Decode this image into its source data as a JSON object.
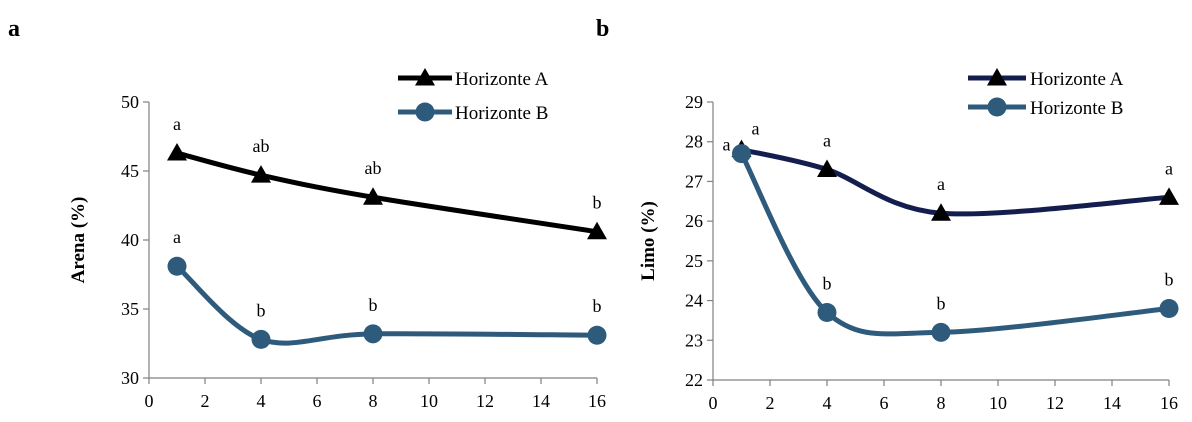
{
  "chart_data": [
    {
      "type": "line",
      "panel_label": "a",
      "title": "",
      "xlabel": "",
      "ylabel": "Arena (%)",
      "xlim": [
        0,
        16
      ],
      "ylim": [
        30,
        50
      ],
      "xticks": [
        0,
        2,
        4,
        6,
        8,
        10,
        12,
        14,
        16
      ],
      "yticks": [
        30,
        35,
        40,
        45,
        50
      ],
      "grid": false,
      "legend_position": "top-right",
      "x": [
        1,
        4,
        8,
        16
      ],
      "series": [
        {
          "name": "Horizonte A",
          "values": [
            46.3,
            44.7,
            43.1,
            40.6
          ],
          "color": "#000000",
          "marker": "triangle",
          "letters": [
            "a",
            "ab",
            "ab",
            "b"
          ]
        },
        {
          "name": "Horizonte B",
          "values": [
            38.1,
            32.8,
            33.2,
            33.1
          ],
          "color": "#2E5A7C",
          "marker": "circle",
          "letters": [
            "a",
            "b",
            "b",
            "b"
          ]
        }
      ]
    },
    {
      "type": "line",
      "panel_label": "b",
      "title": "",
      "xlabel": "",
      "ylabel": "Limo (%)",
      "xlim": [
        0,
        16
      ],
      "ylim": [
        22,
        29
      ],
      "xticks": [
        0,
        2,
        4,
        6,
        8,
        10,
        12,
        14,
        16
      ],
      "yticks": [
        22,
        23,
        24,
        25,
        26,
        27,
        28,
        29
      ],
      "grid": false,
      "legend_position": "top-right",
      "x": [
        1,
        4,
        8,
        16
      ],
      "series": [
        {
          "name": "Horizonte A",
          "values": [
            27.8,
            27.3,
            26.2,
            26.6
          ],
          "color": "#141E4E",
          "marker": "triangle",
          "letters": [
            "a",
            "a",
            "a",
            "a"
          ]
        },
        {
          "name": "Horizonte B",
          "values": [
            27.7,
            23.7,
            23.2,
            23.8
          ],
          "color": "#2E5A7C",
          "marker": "circle",
          "letters": [
            "a",
            "b",
            "b",
            "b"
          ]
        }
      ]
    }
  ]
}
